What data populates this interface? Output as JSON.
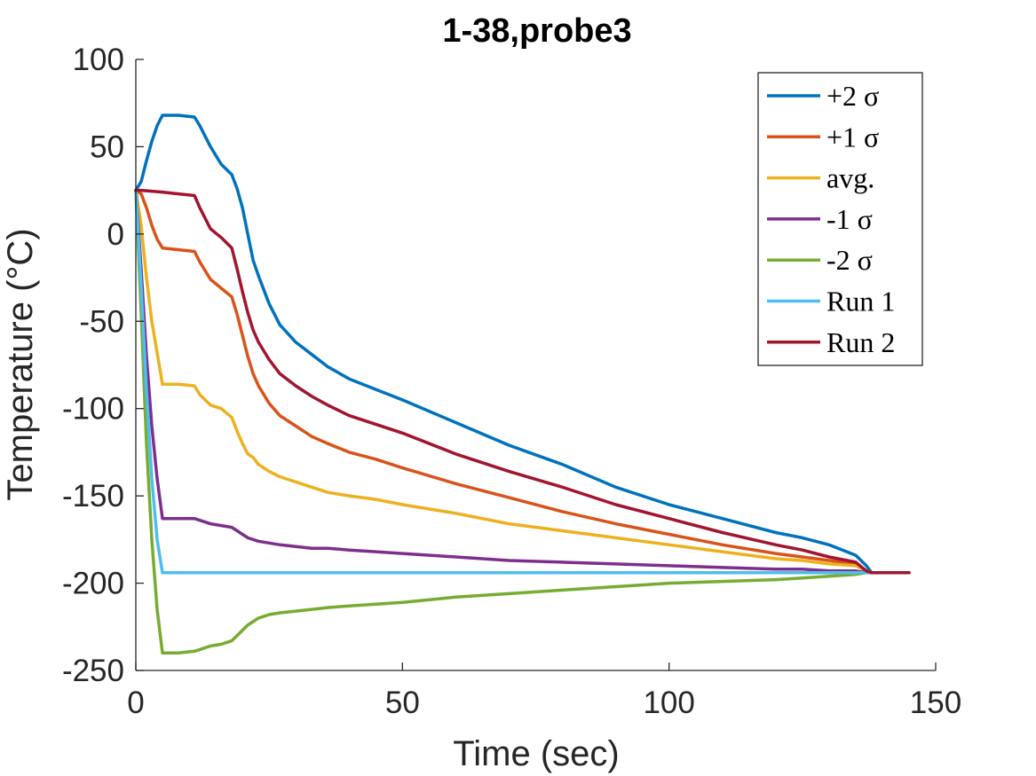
{
  "chart_data": {
    "type": "line",
    "title": "1-38,probe3",
    "xlabel": "Time (sec)",
    "ylabel": "Temperature (°C)",
    "xlim": [
      0,
      150
    ],
    "ylim": [
      -250,
      100
    ],
    "xticks": [
      0,
      50,
      100,
      150
    ],
    "yticks": [
      -250,
      -200,
      -150,
      -100,
      -50,
      0,
      50,
      100
    ],
    "grid": false,
    "legend_position": "top-right",
    "series": [
      {
        "name": "+2 σ",
        "color": "#0072BD",
        "x": [
          0,
          1,
          2,
          3,
          4,
          5,
          8,
          11,
          12,
          14,
          16,
          18,
          19,
          20,
          21,
          22,
          23,
          25,
          27,
          30,
          33,
          36,
          40,
          45,
          50,
          60,
          70,
          80,
          90,
          100,
          110,
          120,
          125,
          130,
          135,
          137,
          138,
          140,
          145
        ],
        "y": [
          25,
          30,
          42,
          53,
          62,
          68,
          68,
          67,
          62,
          50,
          40,
          34,
          26,
          15,
          0,
          -15,
          -24,
          -40,
          -52,
          -62,
          -69,
          -76,
          -83,
          -89,
          -95,
          -108,
          -121,
          -132,
          -145,
          -155,
          -163,
          -171,
          -174,
          -178,
          -184,
          -190,
          -194,
          -194,
          -194
        ]
      },
      {
        "name": "+1 σ",
        "color": "#D95319",
        "x": [
          0,
          1,
          2,
          3,
          4,
          5,
          8,
          11,
          12,
          14,
          16,
          18,
          19,
          20,
          21,
          22,
          23,
          25,
          27,
          30,
          33,
          36,
          40,
          45,
          50,
          60,
          70,
          80,
          90,
          100,
          110,
          120,
          125,
          130,
          135,
          137,
          138,
          140,
          145
        ],
        "y": [
          25,
          23,
          15,
          5,
          -3,
          -8,
          -9,
          -10,
          -16,
          -26,
          -31,
          -36,
          -46,
          -58,
          -70,
          -80,
          -87,
          -97,
          -104,
          -110,
          -116,
          -120,
          -125,
          -129,
          -134,
          -143,
          -151,
          -159,
          -166,
          -172,
          -178,
          -183,
          -185,
          -187,
          -189,
          -193,
          -194,
          -194,
          -194
        ]
      },
      {
        "name": "avg.",
        "color": "#EDB120",
        "x": [
          0,
          1,
          2,
          3,
          4,
          5,
          8,
          11,
          12,
          14,
          16,
          18,
          19,
          20,
          21,
          22,
          23,
          25,
          27,
          30,
          33,
          36,
          40,
          45,
          50,
          60,
          70,
          80,
          90,
          100,
          110,
          120,
          125,
          130,
          135,
          137,
          138,
          140,
          145
        ],
        "y": [
          25,
          5,
          -25,
          -50,
          -68,
          -86,
          -86,
          -87,
          -92,
          -98,
          -100,
          -105,
          -113,
          -120,
          -126,
          -128,
          -132,
          -136,
          -139,
          -142,
          -145,
          -148,
          -150,
          -152,
          -155,
          -160,
          -166,
          -170,
          -174,
          -178,
          -182,
          -186,
          -187,
          -189,
          -190,
          -193,
          -194,
          -194,
          -194
        ]
      },
      {
        "name": "-1 σ",
        "color": "#7E2F8E",
        "x": [
          0,
          1,
          2,
          3,
          4,
          5,
          8,
          11,
          12,
          14,
          16,
          18,
          19,
          20,
          21,
          22,
          23,
          25,
          27,
          30,
          33,
          36,
          40,
          45,
          50,
          60,
          70,
          80,
          90,
          100,
          110,
          120,
          125,
          130,
          135,
          137,
          138,
          140,
          145
        ],
        "y": [
          25,
          -20,
          -70,
          -110,
          -140,
          -163,
          -163,
          -163,
          -164,
          -166,
          -167,
          -168,
          -170,
          -172,
          -174,
          -175,
          -176,
          -177,
          -178,
          -179,
          -180,
          -180,
          -181,
          -182,
          -183,
          -185,
          -187,
          -188,
          -189,
          -190,
          -191,
          -192,
          -192,
          -193,
          -193,
          -194,
          -194,
          -194,
          -194
        ]
      },
      {
        "name": "-2 σ",
        "color": "#77AC30",
        "x": [
          0,
          1,
          2,
          3,
          4,
          5,
          8,
          11,
          12,
          14,
          16,
          18,
          19,
          20,
          21,
          22,
          23,
          25,
          27,
          30,
          33,
          36,
          40,
          45,
          50,
          60,
          70,
          80,
          90,
          100,
          110,
          120,
          125,
          130,
          135,
          137,
          138,
          140,
          145
        ],
        "y": [
          25,
          -45,
          -120,
          -175,
          -215,
          -240,
          -240,
          -239,
          -238,
          -236,
          -235,
          -233,
          -230,
          -227,
          -224,
          -222,
          -220,
          -218,
          -217,
          -216,
          -215,
          -214,
          -213,
          -212,
          -211,
          -208,
          -206,
          -204,
          -202,
          -200,
          -199,
          -198,
          -197,
          -196,
          -195,
          -194,
          -194,
          -194,
          -194
        ]
      },
      {
        "name": "Run 1",
        "color": "#4DBEEE",
        "x": [
          0,
          1,
          2,
          3,
          4,
          5,
          8,
          12,
          18,
          20,
          50,
          100,
          138,
          145
        ],
        "y": [
          25,
          -30,
          -90,
          -140,
          -175,
          -194,
          -194,
          -194,
          -194,
          -194,
          -194,
          -194,
          -194,
          -194
        ]
      },
      {
        "name": "Run 2",
        "color": "#A2142F",
        "x": [
          0,
          1,
          5,
          8,
          11,
          12,
          14,
          16,
          18,
          19,
          20,
          21,
          22,
          23,
          25,
          27,
          30,
          33,
          36,
          40,
          45,
          50,
          60,
          70,
          80,
          90,
          100,
          110,
          120,
          125,
          130,
          135,
          137,
          138,
          140,
          145
        ],
        "y": [
          25,
          25,
          24,
          23,
          22,
          15,
          3,
          -2,
          -8,
          -20,
          -33,
          -45,
          -55,
          -62,
          -72,
          -80,
          -87,
          -93,
          -98,
          -104,
          -109,
          -114,
          -126,
          -136,
          -145,
          -155,
          -163,
          -171,
          -178,
          -181,
          -185,
          -188,
          -193,
          -194,
          -194,
          -194
        ]
      }
    ]
  }
}
